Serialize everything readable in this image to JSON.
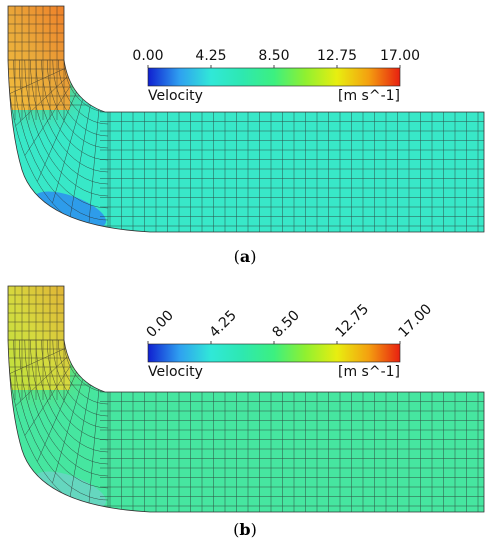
{
  "panels": [
    {
      "id": "a",
      "caption_open": "(",
      "caption_letter": "a",
      "caption_close": ")",
      "colorbar": {
        "title": "Velocity",
        "unit": "[m s^-1]",
        "ticks": [
          "0.00",
          "4.25",
          "8.50",
          "12.75",
          "17.00"
        ],
        "tick_rotation": 0,
        "colors": [
          "#1020d0",
          "#2fa0f0",
          "#30e8d8",
          "#2ee8b0",
          "#3cf080",
          "#90f030",
          "#e8ee10",
          "#f4a010",
          "#e82010"
        ]
      },
      "field": {
        "inlet_colors": [
          "#f07a26",
          "#e9a83a",
          "#f4c03c"
        ],
        "duct_color": "#38e8c8",
        "inner_corner_color": "#4fd69a",
        "outer_corner_color": "#2d8ef0"
      }
    },
    {
      "id": "b",
      "caption_open": "(",
      "caption_letter": "b",
      "caption_close": ")",
      "colorbar": {
        "title": "Velocity",
        "unit": "[m s^-1]",
        "ticks": [
          "0.00",
          "4.25",
          "8.50",
          "12.75",
          "17.00"
        ],
        "tick_rotation": -45,
        "colors": [
          "#1020d0",
          "#2fa0f0",
          "#30e8d8",
          "#2ee8b0",
          "#3cf080",
          "#90f030",
          "#e8ee10",
          "#f4a010",
          "#e82010"
        ]
      },
      "field": {
        "inlet_colors": [
          "#e2ae34",
          "#d6d93e",
          "#b8e33c"
        ],
        "duct_color": "#46e6a0",
        "inner_corner_color": "#5ae07e",
        "outer_corner_color": "#6bd3c4"
      }
    }
  ]
}
